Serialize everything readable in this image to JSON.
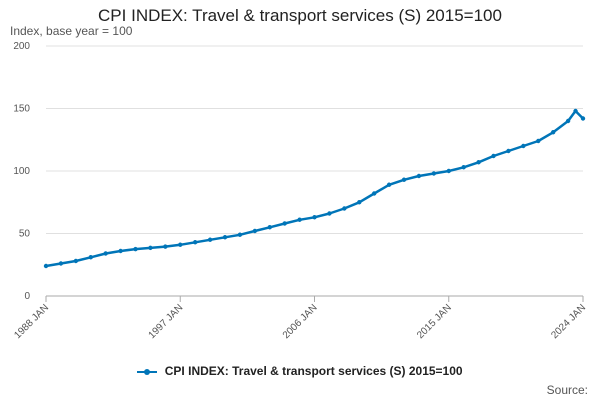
{
  "chart_data": {
    "type": "line",
    "title": "CPI INDEX: Travel & transport services (S) 2015=100",
    "subtitle": "Index, base year = 100",
    "xlabel": "",
    "ylabel": "Index, base year = 100",
    "ylim": [
      0,
      200
    ],
    "yticks": [
      0,
      50,
      100,
      150,
      200
    ],
    "xlim": [
      1988,
      2024
    ],
    "xticks": [
      {
        "value": 1988,
        "label": "1988 JAN"
      },
      {
        "value": 1997,
        "label": "1997 JAN"
      },
      {
        "value": 2006,
        "label": "2006 JAN"
      },
      {
        "value": 2015,
        "label": "2015 JAN"
      },
      {
        "value": 2024,
        "label": "2024 JAN"
      }
    ],
    "grid": true,
    "legend_position": "bottom",
    "series": [
      {
        "name": "CPI INDEX: Travel & transport services (S) 2015=100",
        "color": "#0075b8",
        "x": [
          1988,
          1989,
          1990,
          1991,
          1992,
          1993,
          1994,
          1995,
          1996,
          1997,
          1998,
          1999,
          2000,
          2001,
          2002,
          2003,
          2004,
          2005,
          2006,
          2007,
          2008,
          2009,
          2010,
          2011,
          2012,
          2013,
          2014,
          2015,
          2016,
          2017,
          2018,
          2019,
          2020,
          2021,
          2022,
          2023,
          2023.5,
          2024
        ],
        "values": [
          24,
          26,
          28,
          31,
          34,
          36,
          37.5,
          38.5,
          39.5,
          41,
          43,
          45,
          47,
          49,
          52,
          55,
          58,
          61,
          63,
          66,
          70,
          75,
          82,
          89,
          93,
          96,
          98,
          100,
          103,
          107,
          112,
          116,
          120,
          124,
          131,
          140,
          148,
          142
        ]
      }
    ]
  },
  "legend": {
    "label": "CPI INDEX: Travel & transport services (S) 2015=100"
  },
  "source_label": "Source:"
}
